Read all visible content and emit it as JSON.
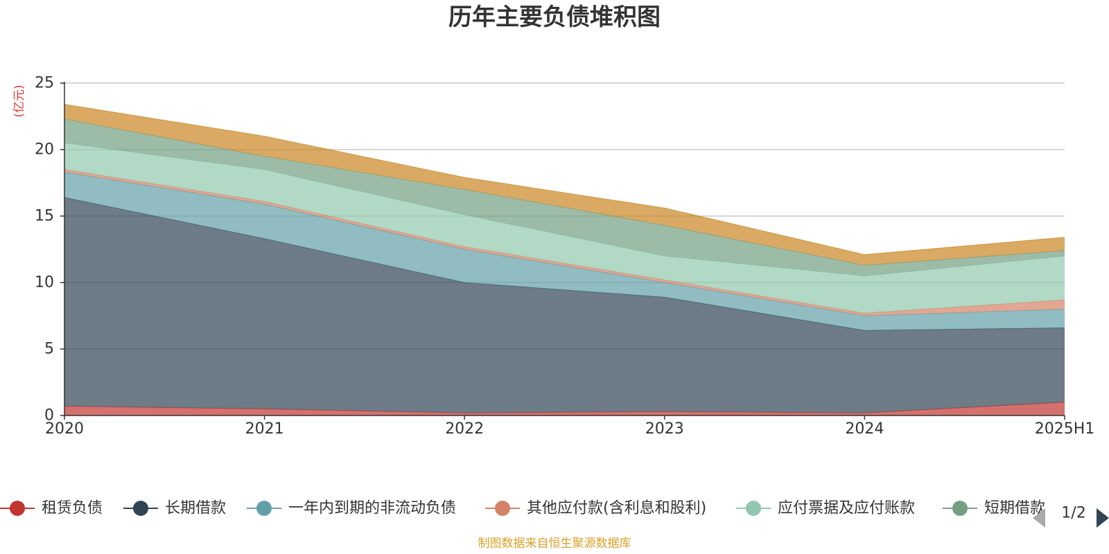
{
  "chart_data": {
    "type": "area",
    "stacked": true,
    "title": "历年主要负债堆积图",
    "ylabel": "(亿元)",
    "xlabel": "",
    "categories": [
      "2020",
      "2021",
      "2022",
      "2023",
      "2024",
      "2025H1"
    ],
    "ylim": [
      0,
      25
    ],
    "yticks": [
      0,
      5,
      10,
      15,
      20,
      25
    ],
    "grid": true,
    "series": [
      {
        "name": "租赁负债",
        "color": "#c23531",
        "values": [
          0.7,
          0.5,
          0.2,
          0.3,
          0.2,
          1.0
        ]
      },
      {
        "name": "长期借款",
        "color": "#2f4554",
        "values": [
          15.7,
          12.8,
          9.8,
          8.6,
          6.2,
          5.6
        ]
      },
      {
        "name": "一年内到期的非流动负债",
        "color": "#61a0a8",
        "values": [
          1.9,
          2.6,
          2.5,
          1.1,
          1.1,
          1.4
        ]
      },
      {
        "name": "其他应付款(含利息和股利)",
        "color": "#d48265",
        "values": [
          0.2,
          0.2,
          0.2,
          0.2,
          0.2,
          0.7
        ]
      },
      {
        "name": "应付票据及应付账款",
        "color": "#91c7ae",
        "values": [
          2.0,
          2.4,
          2.4,
          1.8,
          2.8,
          3.3
        ]
      },
      {
        "name": "短期借款",
        "color": "#749f83",
        "values": [
          1.8,
          1.0,
          1.9,
          2.3,
          0.8,
          0.4
        ]
      },
      {
        "name": "",
        "color": "#ca8622",
        "values": [
          1.1,
          1.5,
          0.9,
          1.3,
          0.8,
          1.0
        ]
      }
    ],
    "legend": {
      "position": "bottom",
      "page": "1/2"
    }
  },
  "source_note": "制图数据来自恒生聚源数据库"
}
